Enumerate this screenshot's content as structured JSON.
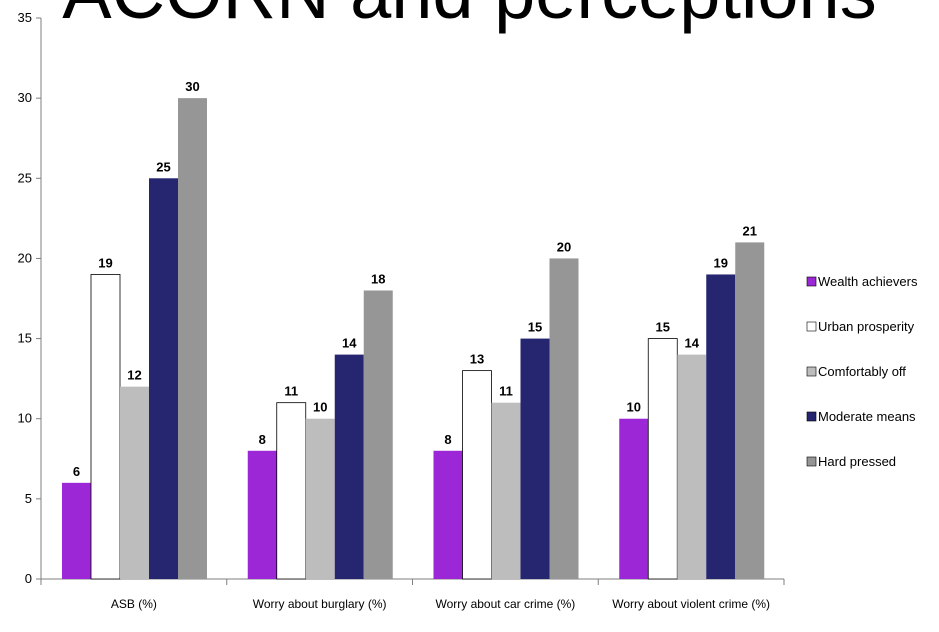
{
  "chart_data": {
    "type": "bar",
    "title": "ACORN and perceptions",
    "xlabel": "",
    "ylabel": "",
    "ylim": [
      0,
      35
    ],
    "yticks": [
      0,
      5,
      10,
      15,
      20,
      25,
      30,
      35
    ],
    "grid": false,
    "legend_position": "right",
    "categories": [
      "ASB (%)",
      "Worry about burglary (%)",
      "Worry about car crime (%)",
      "Worry about violent crime (%)"
    ],
    "series": [
      {
        "name": "Wealth achievers",
        "color": "#9b27d6",
        "values": [
          6,
          8,
          8,
          10
        ]
      },
      {
        "name": "Urban prosperity",
        "color": "#ffffff",
        "values": [
          19,
          11,
          13,
          15
        ]
      },
      {
        "name": "Comfortably off",
        "color": "#bdbdbd",
        "values": [
          12,
          10,
          11,
          14
        ]
      },
      {
        "name": "Moderate means",
        "color": "#262670",
        "values": [
          25,
          14,
          15,
          19
        ]
      },
      {
        "name": "Hard pressed",
        "color": "#969696",
        "values": [
          30,
          18,
          20,
          21
        ]
      }
    ]
  }
}
